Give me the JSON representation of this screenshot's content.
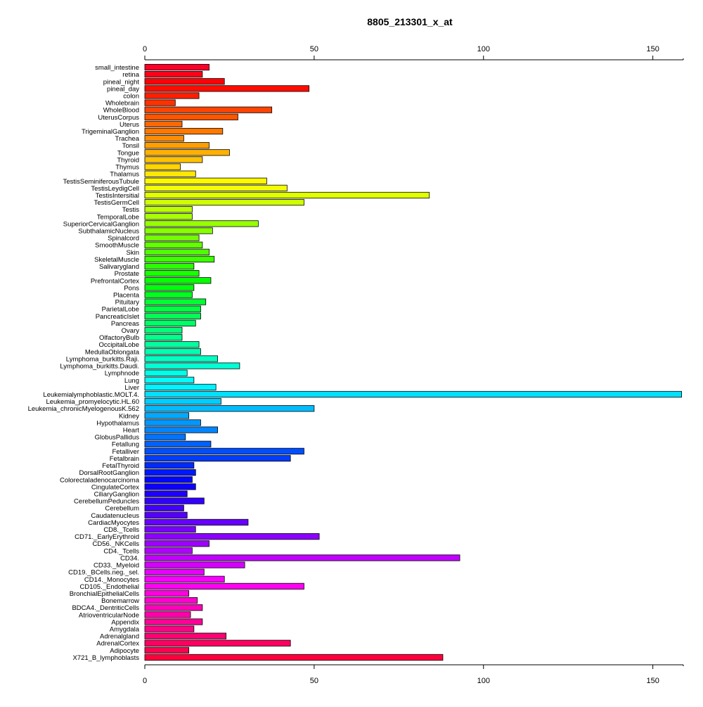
{
  "chart_data": {
    "type": "bar",
    "orientation": "horizontal",
    "title": "8805_213301_x_at",
    "xlabel": "",
    "ylabel": "",
    "xlim": [
      0,
      159
    ],
    "xticks": [
      0,
      50,
      100,
      150
    ],
    "tick_axes": [
      "top",
      "bottom"
    ],
    "grid": false,
    "legend": "none",
    "color_scheme": "rainbow (red → yellow → green → cyan → blue → magenta → red), one color per category",
    "bar_stroke": "#000000",
    "categories": [
      "small_intestine",
      "retina",
      "pineal_night",
      "pineal_day",
      "colon",
      "Wholebrain",
      "WholeBlood",
      "UterusCorpus",
      "Uterus",
      "TrigeminalGanglion",
      "Trachea",
      "Tonsil",
      "Tongue",
      "Thyroid",
      "Thymus",
      "Thalamus",
      "TestisSeminiferousTubule",
      "TestisLeydigCell",
      "TestisIntersitial",
      "TestisGermCell",
      "Testis",
      "TemporalLobe",
      "SuperiorCervicalGanglion",
      "SubthalamicNucleus",
      "Spinalcord",
      "SmoothMuscle",
      "Skin",
      "SkeletalMuscle",
      "Salivarygland",
      "Prostate",
      "PrefrontalCortex",
      "Pons",
      "Placenta",
      "Pituitary",
      "ParietalLobe",
      "PancreaticIslet",
      "Pancreas",
      "Ovary",
      "OlfactoryBulb",
      "OccipitalLobe",
      "MedullaOblongata",
      "Lymphoma_burkitts.Raji.",
      "Lymphoma_burkitts.Daudi.",
      "Lymphnode",
      "Lung",
      "Liver",
      "Leukemialymphoblastic.MOLT.4.",
      "Leukemia_promyelocytic.HL.60",
      "Leukemia_chronicMyelogenousK.562",
      "Kidney",
      "Hypothalamus",
      "Heart",
      "GlobusPallidus",
      "Fetallung",
      "Fetalliver",
      "Fetalbrain",
      "FetalThyroid",
      "DorsalRootGanglion",
      "Colorectaladenocarcinoma",
      "CingulateCortex",
      "CiliaryGanglion",
      "CerebellumPeduncles",
      "Cerebellum",
      "Caudatenucleus",
      "CardiacMyocytes",
      "CD8._Tcells",
      "CD71._EarlyErythroid",
      "CD56._NKCells",
      "CD4._Tcells",
      "CD34.",
      "CD33._Myeloid",
      "CD19._BCells.neg._sel.",
      "CD14._Monocytes",
      "CD105._Endothelial",
      "BronchialEpithelialCells",
      "Bonemarrow",
      "BDCA4._DentriticCells",
      "AtrioventricularNode",
      "Appendix",
      "Amygdala",
      "Adrenalgland",
      "AdrenalCortex",
      "Adipocyte",
      "X721_B_lymphoblasts"
    ],
    "values": [
      19.0,
      17.0,
      23.5,
      48.5,
      16.0,
      9.0,
      37.5,
      27.5,
      11.0,
      23.0,
      11.5,
      19.0,
      25.0,
      17.0,
      10.5,
      15.0,
      36.0,
      42.0,
      84.0,
      47.0,
      14.0,
      14.0,
      33.5,
      20.0,
      16.0,
      17.0,
      19.0,
      20.5,
      14.5,
      16.0,
      19.5,
      14.5,
      14.0,
      18.0,
      16.5,
      16.5,
      15.0,
      11.0,
      11.0,
      16.0,
      16.5,
      21.5,
      28.0,
      12.5,
      14.5,
      21.0,
      158.5,
      22.5,
      50.0,
      13.0,
      16.5,
      21.5,
      12.0,
      19.5,
      47.0,
      43.0,
      14.5,
      15.0,
      14.0,
      15.0,
      12.5,
      17.5,
      11.5,
      12.5,
      30.5,
      15.0,
      51.5,
      19.0,
      14.0,
      93.0,
      29.5,
      17.5,
      23.5,
      47.0,
      13.0,
      15.5,
      17.0,
      13.5,
      17.0,
      14.5,
      24.0,
      43.0,
      13.0,
      88.0
    ]
  }
}
